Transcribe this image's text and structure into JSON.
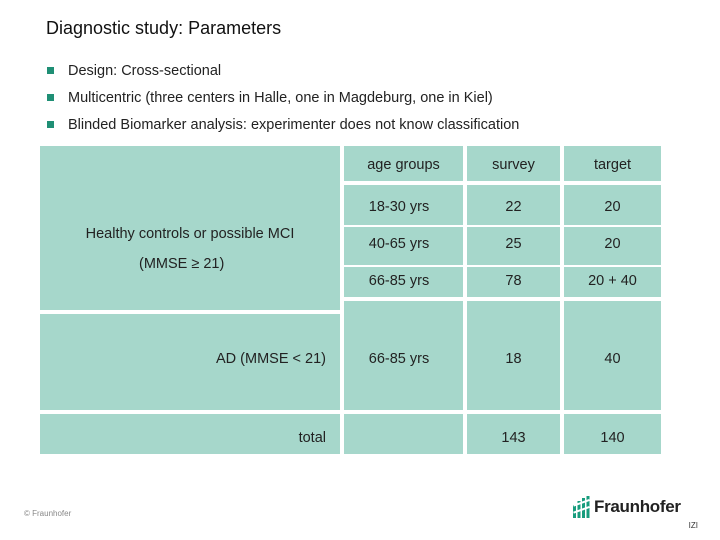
{
  "slide": {
    "title": "Diagnostic study: Parameters",
    "bullets": [
      "Design: Cross-sectional",
      "Multicentric (three centers in Halle, one in Magdeburg, one in Kiel)",
      "Blinded Biomarker analysis: experimenter does not know classification"
    ]
  },
  "table": {
    "headers": {
      "age_groups": "age groups",
      "survey": "survey",
      "target": "target"
    },
    "group1": {
      "label_line1": "Healthy controls or possible MCI",
      "label_line2": "(MMSE ≥ 21)",
      "rows": [
        {
          "age": "18-30 yrs",
          "survey": "22",
          "target": "20"
        },
        {
          "age": "40-65 yrs",
          "survey": "25",
          "target": "20"
        },
        {
          "age": "66-85 yrs",
          "survey": "78",
          "target": "20 + 40"
        }
      ]
    },
    "group2": {
      "label": "AD (MMSE < 21)",
      "age": "66-85 yrs",
      "survey": "18",
      "target": "40"
    },
    "total": {
      "label": "total",
      "survey": "143",
      "target": "140"
    }
  },
  "footer": {
    "copyright": "© Fraunhofer"
  },
  "logo": {
    "name": "Fraunhofer",
    "sub": "IZI",
    "color": "#179c7d"
  }
}
